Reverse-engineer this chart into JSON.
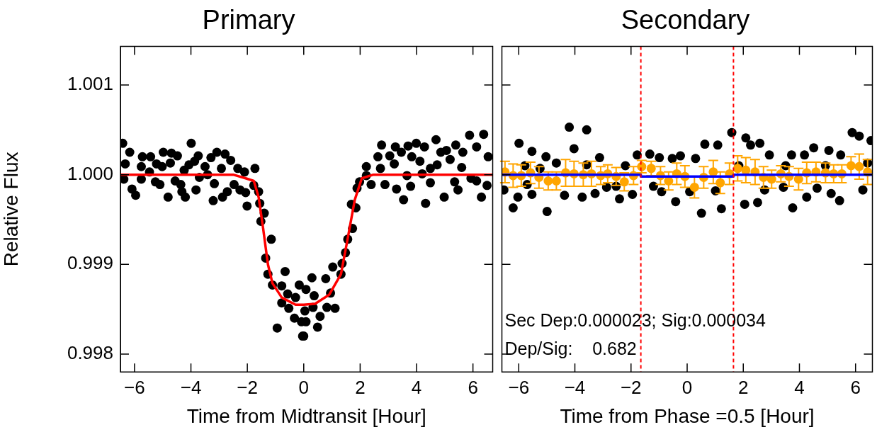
{
  "chart_data": [
    {
      "type": "scatter",
      "title": "Primary",
      "xlabel": "Time from Midtransit [Hour]",
      "ylabel": "Relative Flux",
      "marker": "circle",
      "grid": false,
      "legend": false,
      "xlim": [
        -6.5,
        6.7
      ],
      "xticks": [
        {
          "value": -6,
          "label": "−6"
        },
        {
          "value": -4,
          "label": "−4"
        },
        {
          "value": -2,
          "label": "−2"
        },
        0,
        2,
        4,
        6
      ],
      "ylim": [
        0.9978,
        1.00143
      ],
      "yticks": [
        0.998,
        0.999,
        {
          "value": 1,
          "label": "1.000"
        },
        1.001
      ],
      "series": [
        {
          "color": "#000000",
          "x": [
            -6.42,
            -6.17,
            -6.33,
            -6.38,
            -6.09,
            -5.96,
            -5.76,
            -5.72,
            -5.76,
            -5.43,
            -5.47,
            -5.22,
            -5.26,
            -5.1,
            -4.98,
            -5.02,
            -4.81,
            -4.73,
            -4.69,
            -4.48,
            -4.56,
            -4.36,
            -4.32,
            -4.2,
            -4.24,
            -4.07,
            -3.99,
            -3.87,
            -3.82,
            -3.74,
            -3.7,
            -3.5,
            -3.41,
            -3.29,
            -3.17,
            -3.21,
            -3.08,
            -2.92,
            -2.88,
            -2.79,
            -2.71,
            -2.59,
            -2.47,
            -2.34,
            -2.26,
            -2.1,
            -2.06,
            -2.01,
            -1.73,
            -1.77,
            -1.6,
            -1.56,
            -1.4,
            -1.52,
            -1.15,
            -1.35,
            -1.27,
            -1.11,
            -0.66,
            -0.78,
            -0.78,
            -0.53,
            -0.57,
            -0.29,
            -0.16,
            -0.33,
            -0.94,
            -0.08,
            -0.04,
            0.04,
            0,
            0.08,
            0.49,
            0.33,
            0.58,
            0.08,
            0.37,
            0.29,
            0.78,
            0.82,
            1.11,
            0.95,
            1.03,
            1.32,
            1.36,
            1.48,
            1.56,
            1.73,
            1.69,
            1.85,
            1.89,
            1.98,
            2.22,
            2.22,
            2.39,
            2.63,
            2.76,
            2.72,
            2.88,
            3.05,
            3.25,
            3.29,
            3.21,
            3.46,
            3.54,
            3.66,
            3.7,
            3.79,
            3.83,
            3.99,
            4.12,
            4.2,
            4.28,
            4.32,
            4.49,
            4.49,
            4.69,
            4.73,
            4.86,
            4.98,
            5.06,
            5.19,
            5.35,
            5.39,
            5.47,
            5.6,
            5.64,
            5.88,
            5.93,
            6.13,
            6.13,
            6.3,
            6.38,
            6.5,
            6.54
          ],
          "values": [
            1.00035,
            1.00025,
            1.00012,
            0.99995,
            0.99984,
            0.99977,
            1.00009,
            1.0002,
            0.99995,
            1.0002,
            1.00003,
            1.00012,
            0.99992,
            0.99989,
            1.00025,
            1.00009,
            0.99975,
            1.00013,
            1.00024,
            1.00021,
            0.99993,
            0.99989,
            0.99981,
            0.99975,
            1.00005,
            1.00011,
            1.00035,
            1.00015,
            0.99983,
            1.00021,
            0.99997,
            1.00009,
            1.0,
            1.00019,
            0.9999,
            0.99971,
            1.00025,
            1.00007,
            0.99975,
            1.00023,
            0.99981,
            1.00016,
            0.99989,
            1.00007,
            0.99983,
            1.00003,
            0.9998,
            0.99965,
            1.00007,
            0.99988,
            0.99981,
            0.99968,
            0.99957,
            0.99948,
            0.99928,
            0.99907,
            0.99889,
            0.99877,
            0.99892,
            0.99876,
            0.99857,
            0.99851,
            0.99867,
            0.99863,
            0.99877,
            0.9984,
            0.99829,
            0.99836,
            0.9982,
            0.99848,
            0.9982,
            0.99836,
            0.9983,
            0.99852,
            0.99842,
            0.99872,
            0.99865,
            0.99885,
            0.99884,
            0.99852,
            0.99851,
            0.99868,
            0.99897,
            0.99889,
            0.99901,
            0.99913,
            0.99928,
            0.9994,
            0.99967,
            0.99963,
            0.99985,
            0.99992,
            1.00009,
            0.99999,
            0.99989,
            1.0002,
            1.00033,
            1.00007,
            0.99989,
            1.00021,
            1.00031,
            0.99984,
            1.00012,
            1.00025,
            0.99972,
            0.99999,
            1.00032,
            0.99987,
            1.0002,
            1.00035,
            1.00015,
            1.00001,
            1.00031,
            0.99968,
            1.00007,
            0.99991,
            1.00039,
            1.00011,
            1.00025,
            0.99975,
            1.00027,
            1.00017,
            0.99992,
            1.00033,
            0.99983,
            1.00008,
            1.00025,
            1.00044,
            0.99996,
            1.00031,
            0.99993,
            0.99975,
            1.00045,
            0.99988,
            1.0002
          ]
        },
        {
          "type": "line",
          "marker": "none",
          "color": "#ff0000",
          "x": [
            -6.5,
            -2.5,
            -2.06,
            -1.77,
            -1.6,
            -1.44,
            -1.27,
            -1.11,
            -0.78,
            -0.29,
            0,
            0.4,
            0.9,
            1.32,
            1.56,
            1.81,
            2.06,
            2.47,
            6.7
          ],
          "values": [
            1,
            1,
            0.99996,
            0.99993,
            0.99975,
            0.9994,
            0.999,
            0.99879,
            0.99863,
            0.99855,
            0.99855,
            0.99856,
            0.99866,
            0.99889,
            0.99929,
            0.99972,
            0.99996,
            1,
            1
          ]
        }
      ]
    },
    {
      "type": "scatter",
      "title": "Secondary",
      "xlabel": "Time from Phase =0.5 [Hour]",
      "marker": "circle",
      "grid": false,
      "legend": false,
      "tick_labels": "x",
      "xlim": [
        -6.6,
        6.6
      ],
      "xticks": [
        {
          "value": -6,
          "label": "−6"
        },
        {
          "value": -4,
          "label": "−4"
        },
        {
          "value": -2,
          "label": "−2"
        },
        0,
        2,
        4,
        6
      ],
      "ylim": [
        0.9978,
        1.00143
      ],
      "yticks": [
        0.998,
        0.999,
        1,
        1.001
      ],
      "ref_lines": [
        {
          "axis": "x",
          "value": -1.65,
          "color": "#ff0000",
          "line_style": "dashed"
        },
        {
          "axis": "x",
          "value": 1.65,
          "color": "#ff0000",
          "line_style": "dashed"
        }
      ],
      "annotations": [
        "Sec Dep:0.000023; Sig:0.000034",
        "Dep/Sig:    0.682"
      ],
      "series": [
        {
          "color": "#000000",
          "x": [
            -5.99,
            -4.2,
            -3.58,
            -5.53,
            -5.03,
            -4.03,
            -1.78,
            -1.33,
            -0.99,
            -0.53,
            -0.24,
            -3.12,
            -4.66,
            -6.2,
            -6.03,
            -4.99,
            -4.37,
            -3.74,
            -3.28,
            -2.41,
            -1.95,
            -0.41,
            -0.91,
            -6.53,
            -5.53,
            -2.87,
            -2.53,
            -1.2,
            -5.78,
            -5.24,
            -3.58,
            -2.2,
            -5.7,
            1.59,
            2.09,
            0.63,
            1.09,
            2.26,
            2.59,
            0.3,
            2.93,
            3.72,
            4.18,
            4.51,
            5.05,
            5.47,
            5.88,
            6.13,
            6.55,
            0.51,
            1.22,
            2.05,
            2.51,
            3.76,
            4.26,
            5.13,
            5.43,
            4.63,
            0.09,
            1.01,
            2.76,
            3.43,
            6.26,
            1.84,
            3.51,
            4.93,
            6.43
          ],
          "values": [
            1.00035,
            1.00053,
            1.0005,
            1.00026,
            1.0002,
            1.00029,
            1.00022,
            1.00023,
            1.00019,
            1.00018,
            1.00021,
            1.00019,
            1.00013,
            0.99963,
            0.99975,
            0.99959,
            0.99977,
            0.99975,
            0.99979,
            0.99973,
            0.99978,
            0.9997,
            0.99981,
            0.99983,
            0.99978,
            0.99986,
            0.99987,
            0.99987,
            1.0001,
            1.00007,
            1.00011,
            1.0001,
            0.99989,
            1.00047,
            1.00041,
            1.00034,
            1.00033,
            1.00033,
            1.00035,
            1.00018,
            1.00022,
            1.00022,
            1.00022,
            1.0003,
            1.00027,
            1.00022,
            1.00047,
            1.00043,
            1.00038,
            0.99957,
            0.99962,
            0.99967,
            0.99969,
            0.99963,
            0.99975,
            0.99979,
            0.99971,
            0.99985,
            0.99981,
            0.99982,
            0.99983,
            0.99986,
            0.99983,
            1.0001,
            1.0001,
            1.0001,
            1.00013
          ]
        },
        {
          "color": "#ffa500",
          "x": [
            -6.49,
            -6.2,
            -5.91,
            -5.58,
            -5.28,
            -4.95,
            -4.66,
            -4.33,
            -4.03,
            -3.7,
            -3.41,
            -3.08,
            -2.83,
            -2.53,
            -2.24,
            -1.91,
            -1.62,
            -1.28,
            -0.95,
            -0.66,
            -0.37,
            -0.08,
            0.26,
            0.59,
            0.93,
            1.18,
            1.51,
            1.8,
            2.09,
            2.42,
            2.72,
            3.01,
            3.34,
            3.63,
            3.97,
            4.26,
            4.59,
            4.93,
            5.22,
            5.51,
            5.84,
            6.13,
            6.43
          ],
          "values": [
            1.00003,
            0.99999,
            0.99999,
            1.00002,
            0.99997,
            0.99993,
            0.99993,
            1.00002,
            1.00001,
            1,
            1.00001,
            0.99999,
            1.00001,
            0.99998,
            0.99992,
            0.99999,
            1.00009,
            1.00007,
            0.99999,
            0.99993,
            1.00001,
            0.99998,
            0.99986,
            0.99997,
            1.00003,
            0.99991,
            1.00001,
            1.00007,
            1.00005,
            1.00003,
            0.99997,
            0.99995,
            1.00001,
            0.99998,
            0.99995,
            1.00002,
            1.00003,
            1.00002,
            1.00001,
            1.00001,
            1.0001,
            1.00009,
            1.00003
          ],
          "errors": [
            0.00012,
            0.00013,
            0.00012,
            0.00012,
            0.00012,
            0.0001,
            0.0001,
            0.00015,
            0.00014,
            0.00013,
            0.00014,
            0.0001,
            0.0001,
            0.0001,
            0.0001,
            0.0001,
            7e-05,
            8e-05,
            0.0001,
            0.0001,
            0.00012,
            0.00012,
            0.00012,
            0.00012,
            0.00013,
            0.00012,
            0.00012,
            0.00014,
            0.00014,
            0.00014,
            0.00012,
            0.0001,
            9e-05,
            0.00011,
            0.00012,
            0.00012,
            0.00011,
            0.00011,
            0.0001,
            0.0001,
            0.0001,
            0.00014,
            0.00014
          ]
        },
        {
          "type": "line",
          "marker": "none",
          "color": "#0000ff",
          "x": [
            -6.6,
            -1.65,
            -1.65,
            1.65,
            1.65,
            6.6
          ],
          "values": [
            1,
            1,
            0.99998,
            0.99998,
            1,
            1
          ]
        }
      ]
    }
  ]
}
